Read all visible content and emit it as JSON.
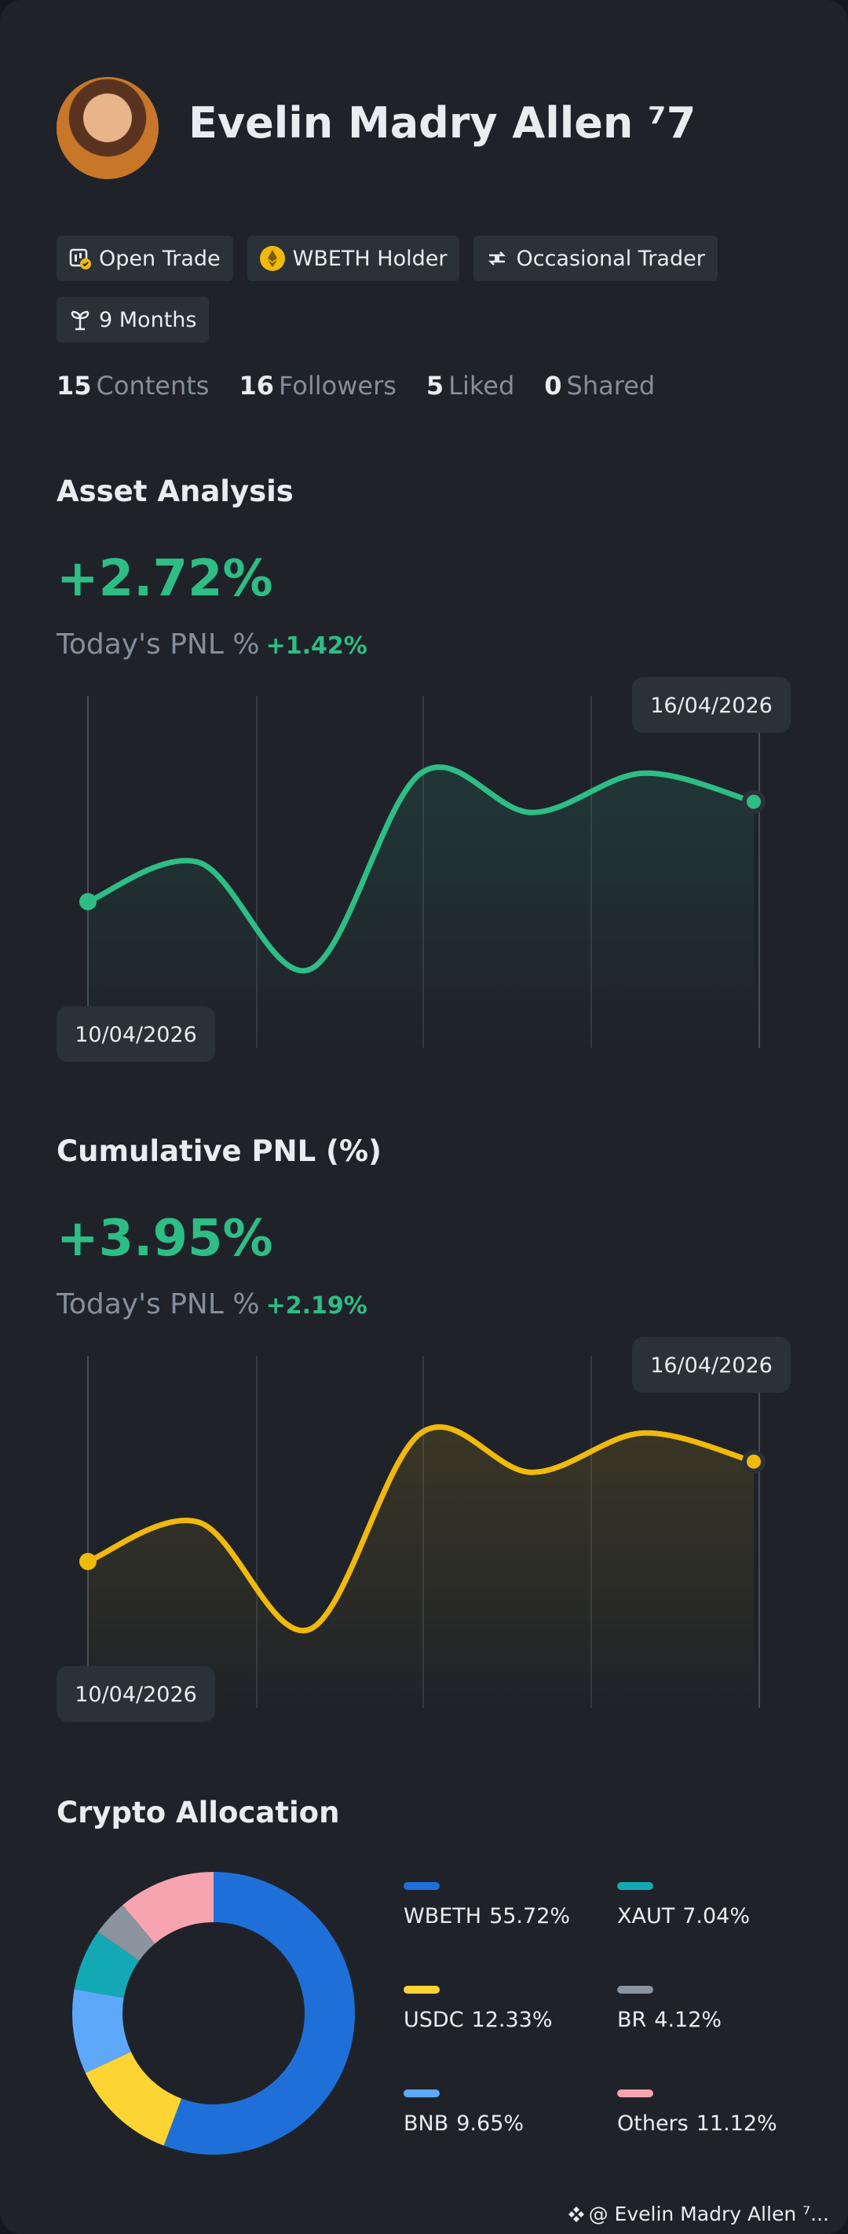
{
  "profile": {
    "name": "Evelin Madry Allen ⁷7",
    "tags": [
      "Open Trade",
      "WBETH Holder",
      "Occasional Trader",
      "9 Months"
    ],
    "stats": [
      {
        "value": 15,
        "label": "Contents"
      },
      {
        "value": 16,
        "label": "Followers"
      },
      {
        "value": 5,
        "label": "Liked"
      },
      {
        "value": 0,
        "label": "Shared"
      }
    ]
  },
  "asset_analysis": {
    "title": "Asset Analysis",
    "change": "+2.72%",
    "pnl_label": "Today's PNL %",
    "pnl_value": "+1.42%",
    "chart": {
      "type": "line",
      "categories": [
        "10/04/2026",
        null,
        null,
        null,
        null,
        null,
        "16/04/2026"
      ],
      "values": [
        41,
        52,
        22,
        77,
        66,
        77,
        69
      ],
      "color": "#2ebd85",
      "ylim": [
        0,
        100
      ]
    }
  },
  "cumulative_pnl": {
    "title": "Cumulative PNL (%)",
    "change": "+3.95%",
    "pnl_label": "Today's PNL %",
    "pnl_value": "+2.19%",
    "chart": {
      "type": "line",
      "categories": [
        "10/04/2026",
        null,
        null,
        null,
        null,
        null,
        "16/04/2026"
      ],
      "values": [
        41,
        52,
        22,
        77,
        66,
        77,
        69
      ],
      "color": "#f0b90b",
      "ylim": [
        0,
        100
      ]
    }
  },
  "crypto_allocation": {
    "title": "Crypto Allocation",
    "chart": {
      "type": "donut",
      "series": [
        {
          "name": "WBETH",
          "value": 55.72,
          "value_label": "55.72%",
          "color": "#1f6fd8"
        },
        {
          "name": "USDC",
          "value": 12.33,
          "value_label": "12.33%",
          "color": "#fcd535"
        },
        {
          "name": "BNB",
          "value": 9.65,
          "value_label": "9.65%",
          "color": "#5ea8fa"
        },
        {
          "name": "XAUT",
          "value": 7.04,
          "value_label": "7.04%",
          "color": "#12a9b5"
        },
        {
          "name": "BR",
          "value": 4.12,
          "value_label": "4.12%",
          "color": "#8a939e"
        },
        {
          "name": "Others",
          "value": 11.12,
          "value_label": "11.12%",
          "color": "#f6a5b0"
        }
      ]
    }
  },
  "footer": "@ Evelin Madry Allen ⁷..."
}
